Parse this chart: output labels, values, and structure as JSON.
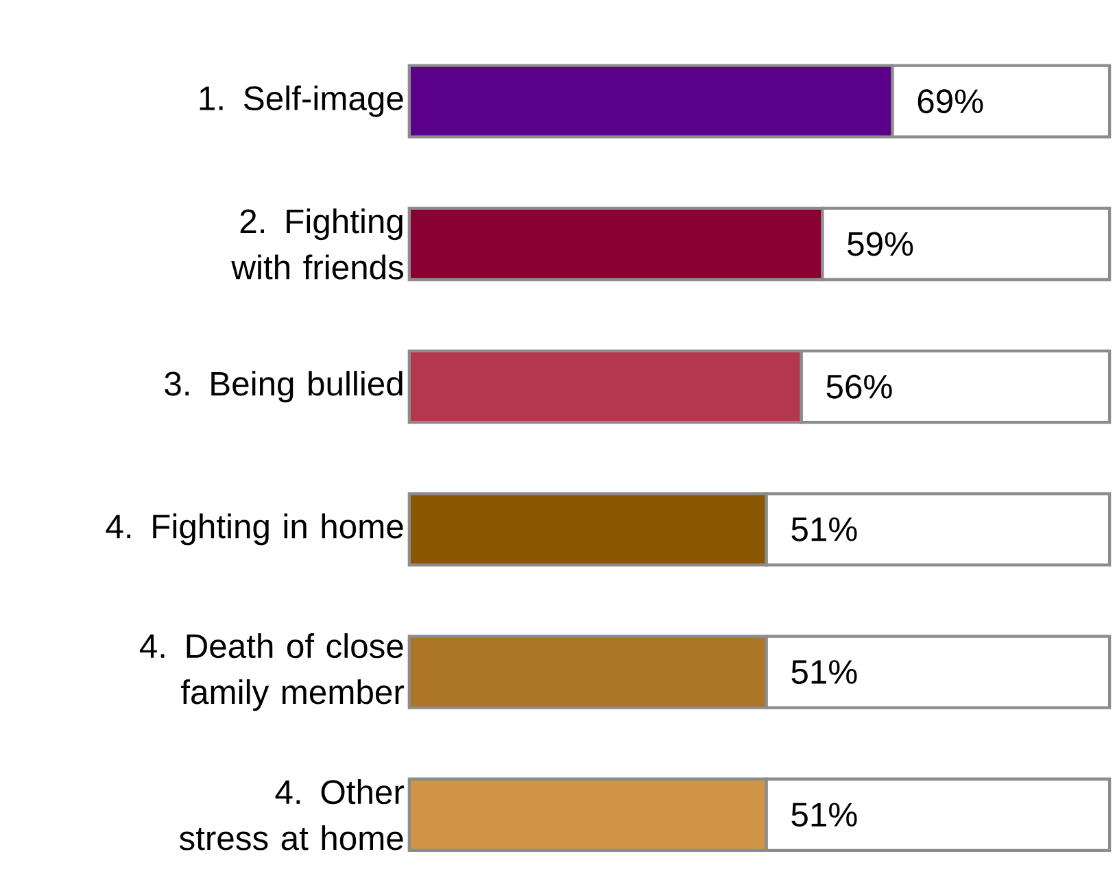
{
  "chart_data": {
    "type": "bar",
    "orientation": "horizontal",
    "stacked": true,
    "categories": [
      "1. Self-image",
      "2. Fighting with friends",
      "3. Being bullied",
      "4. Fighting in home",
      "4. Death of close family member",
      "4. Other stress at home"
    ],
    "series": [
      {
        "colors": [
          "#5a008a",
          "#8b0033",
          "#b5364f",
          "#8b5700",
          "#ad7526",
          "#d09447"
        ],
        "values": [
          69,
          59,
          56,
          51,
          51,
          51
        ],
        "value_labels": [
          "69%",
          "59%",
          "56%",
          "51%",
          "51%",
          "51%"
        ]
      },
      {
        "color": "#ffffff",
        "values": [
          31,
          41,
          44,
          49,
          49,
          49
        ]
      }
    ],
    "xlim": [
      0,
      100
    ],
    "tick_labels": "y"
  }
}
